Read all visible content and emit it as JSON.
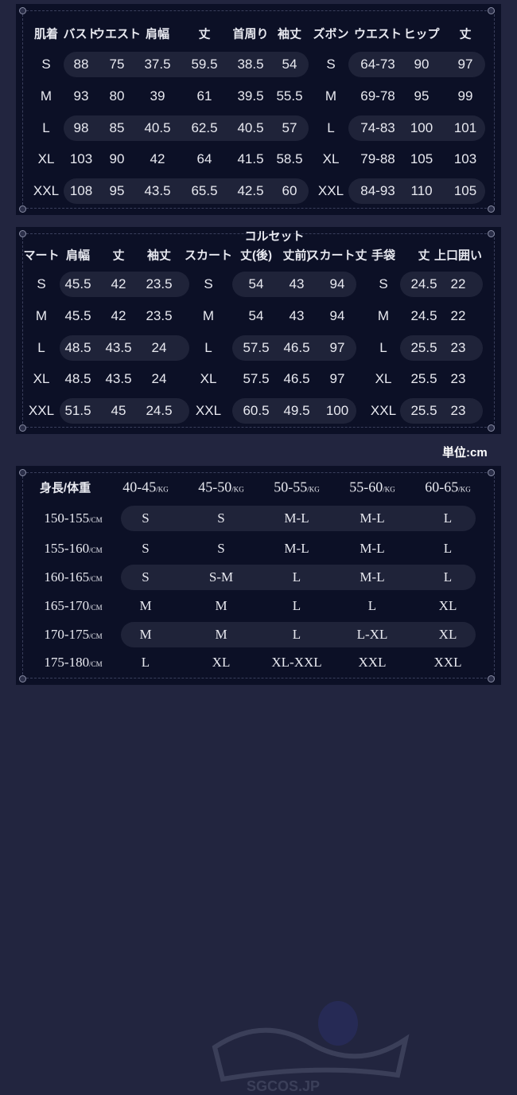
{
  "table1": {
    "headers": [
      "肌着",
      "バスト",
      "ウエスト",
      "肩幅",
      "丈",
      "首周り",
      "袖丈",
      "ズボン",
      "ウエスト",
      "ヒップ",
      "丈"
    ],
    "rows": [
      [
        "S",
        "88",
        "75",
        "37.5",
        "59.5",
        "38.5",
        "54",
        "S",
        "64-73",
        "90",
        "97"
      ],
      [
        "M",
        "93",
        "80",
        "39",
        "61",
        "39.5",
        "55.5",
        "M",
        "69-78",
        "95",
        "99"
      ],
      [
        "L",
        "98",
        "85",
        "40.5",
        "62.5",
        "40.5",
        "57",
        "L",
        "74-83",
        "100",
        "101"
      ],
      [
        "XL",
        "103",
        "90",
        "42",
        "64",
        "41.5",
        "58.5",
        "XL",
        "79-88",
        "105",
        "103"
      ],
      [
        "XXL",
        "108",
        "95",
        "43.5",
        "65.5",
        "42.5",
        "60",
        "XXL",
        "84-93",
        "110",
        "105"
      ]
    ]
  },
  "table2": {
    "title": "コルセット",
    "headers": [
      "マート",
      "肩幅",
      "丈",
      "袖丈",
      "スカート",
      "丈(後)",
      "丈前)",
      "スカート丈",
      "手袋",
      "丈",
      "上口囲い"
    ],
    "rows": [
      [
        "S",
        "45.5",
        "42",
        "23.5",
        "S",
        "54",
        "43",
        "94",
        "S",
        "24.5",
        "22"
      ],
      [
        "M",
        "45.5",
        "42",
        "23.5",
        "M",
        "54",
        "43",
        "94",
        "M",
        "24.5",
        "22"
      ],
      [
        "L",
        "48.5",
        "43.5",
        "24",
        "L",
        "57.5",
        "46.5",
        "97",
        "L",
        "25.5",
        "23"
      ],
      [
        "XL",
        "48.5",
        "43.5",
        "24",
        "XL",
        "57.5",
        "46.5",
        "97",
        "XL",
        "25.5",
        "23"
      ],
      [
        "XXL",
        "51.5",
        "45",
        "24.5",
        "XXL",
        "60.5",
        "49.5",
        "100",
        "XXL",
        "25.5",
        "23"
      ]
    ]
  },
  "unit_label": "単位:cm",
  "table3": {
    "corner": "身長/体重",
    "weight_unit": "/KG",
    "height_unit": "/CM",
    "weights": [
      "40-45",
      "45-50",
      "50-55",
      "55-60",
      "60-65"
    ],
    "rows": [
      {
        "height": "150-155",
        "sizes": [
          "S",
          "S",
          "M-L",
          "M-L",
          "L"
        ]
      },
      {
        "height": "155-160",
        "sizes": [
          "S",
          "S",
          "M-L",
          "M-L",
          "L"
        ]
      },
      {
        "height": "160-165",
        "sizes": [
          "S",
          "S-M",
          "L",
          "M-L",
          "L"
        ]
      },
      {
        "height": "165-170",
        "sizes": [
          "M",
          "M",
          "L",
          "L",
          "XL"
        ]
      },
      {
        "height": "170-175",
        "sizes": [
          "M",
          "M",
          "L",
          "L-XL",
          "XL"
        ]
      },
      {
        "height": "175-180",
        "sizes": [
          "L",
          "XL",
          "XL-XXL",
          "XXL",
          "XXL"
        ]
      }
    ]
  },
  "watermark": "SGCOS.JP",
  "colors": {
    "background": "#22253f",
    "panel": "#0c1026",
    "pill": "#1f2339",
    "text": "#e8e9f0"
  }
}
